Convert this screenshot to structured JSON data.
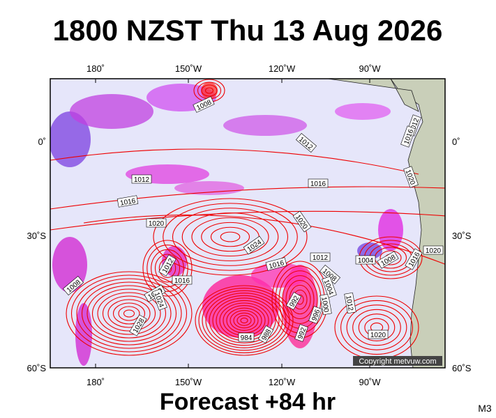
{
  "header": {
    "title": "1800 NZST Thu 13 Aug 2026"
  },
  "map": {
    "top_labels": [
      "180˚",
      "150˚W",
      "120˚W",
      "90˚W"
    ],
    "bottom_labels": [
      "180˚",
      "150˚W",
      "120˚W",
      "90˚W"
    ],
    "left_labels": [
      "0˚",
      "30˚S",
      "60˚S"
    ],
    "right_labels": [
      "0˚",
      "30˚S",
      "60˚S"
    ],
    "isobar_labels": [
      "1008",
      "1012",
      "1012",
      "1016",
      "1016",
      "1020",
      "1020",
      "1024",
      "1016",
      "1012",
      "1008",
      "1004",
      "1008",
      "1016",
      "1020",
      "1012",
      "1016",
      "1020",
      "1024",
      "1008",
      "1028",
      "984",
      "988",
      "992",
      "996",
      "1000",
      "1004",
      "992",
      "1012",
      "1020",
      "1012",
      "1016",
      "1020"
    ],
    "copyright": "Copyright metvuw.com"
  },
  "footer": {
    "forecast": "Forecast +84 hr",
    "code": "M3"
  }
}
